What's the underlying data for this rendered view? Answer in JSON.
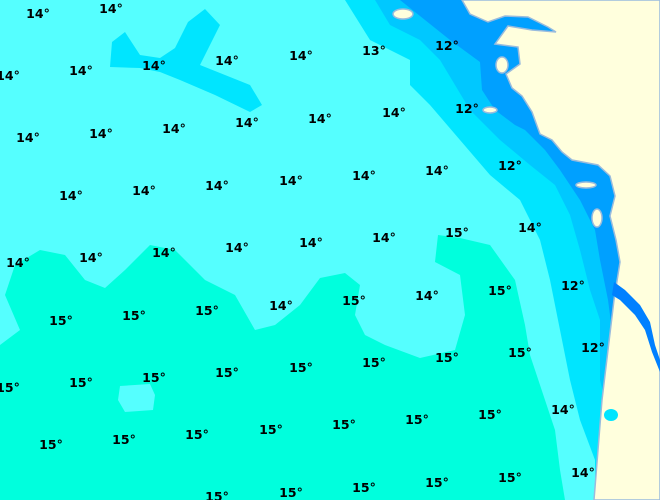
{
  "map": {
    "type": "sea surface temperature map",
    "colors": {
      "t15": "#00ffdd",
      "t14": "#55ffff",
      "t13_5": "#00e5ff",
      "t13": "#00c8ff",
      "t12": "#00a0ff",
      "t11": "#0080ff",
      "land": "#ffffdd",
      "coastline": "#99bbdd"
    },
    "labels": [
      "14°",
      "14°",
      "14°",
      "14°",
      "14°",
      "14°",
      "14°",
      "13°",
      "12°",
      "14°",
      "14°",
      "14°",
      "14°",
      "14°",
      "14°",
      "12°",
      "14°",
      "14°",
      "14°",
      "14°",
      "14°",
      "14°",
      "12°",
      "14°",
      "14°",
      "14°",
      "14°",
      "14°",
      "14°",
      "15°",
      "14°",
      "15°",
      "15°",
      "15°",
      "14°",
      "15°",
      "14°",
      "15°",
      "12°",
      "15°",
      "15°",
      "15°",
      "15°",
      "15°",
      "15°",
      "15°",
      "15°",
      "12°",
      "15°",
      "15°",
      "15°",
      "15°",
      "15°",
      "15°",
      "15°",
      "14°",
      "15°",
      "15°",
      "15°",
      "15°",
      "15°",
      "14°"
    ]
  }
}
